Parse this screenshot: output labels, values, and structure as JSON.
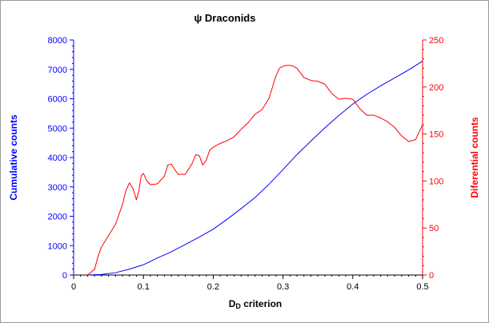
{
  "chart_data": {
    "type": "line",
    "title": "ψ Draconids",
    "xlabel_main": "D",
    "xlabel_sub": "D",
    "xlabel_rest": " criterion",
    "ylabel_left": "Cumulative counts",
    "ylabel_right": "Diferential counts",
    "xlim": [
      0,
      0.5
    ],
    "ylim_left": [
      0,
      8000
    ],
    "ylim_right": [
      0,
      250
    ],
    "x_ticks": [
      "0",
      "0.1",
      "0.2",
      "0.3",
      "0.4",
      "0.5"
    ],
    "y_left_ticks": [
      "0",
      "1000",
      "2000",
      "3000",
      "4000",
      "5000",
      "6000",
      "7000",
      "8000"
    ],
    "y_right_ticks": [
      "0",
      "50",
      "100",
      "150",
      "200",
      "250"
    ],
    "grid": false,
    "legend": "none",
    "colors": {
      "cumulative": "#0000ff",
      "differential": "#ff0000",
      "axes": "#000000"
    },
    "series": [
      {
        "axis": "left",
        "x": [
          0.02,
          0.04,
          0.06,
          0.08,
          0.1,
          0.12,
          0.14,
          0.16,
          0.18,
          0.2,
          0.22,
          0.24,
          0.26,
          0.28,
          0.3,
          0.32,
          0.34,
          0.36,
          0.38,
          0.4,
          0.42,
          0.44,
          0.46,
          0.48,
          0.5
        ],
        "values": [
          0,
          20,
          80,
          200,
          350,
          580,
          790,
          1040,
          1290,
          1560,
          1900,
          2260,
          2640,
          3090,
          3590,
          4100,
          4560,
          5010,
          5430,
          5820,
          6150,
          6440,
          6710,
          6980,
          7280
        ]
      },
      {
        "axis": "right",
        "x": [
          0.02,
          0.03,
          0.035,
          0.04,
          0.045,
          0.05,
          0.06,
          0.07,
          0.075,
          0.08,
          0.085,
          0.09,
          0.093,
          0.097,
          0.1,
          0.105,
          0.11,
          0.12,
          0.13,
          0.135,
          0.14,
          0.145,
          0.15,
          0.16,
          0.17,
          0.175,
          0.18,
          0.185,
          0.19,
          0.195,
          0.2,
          0.21,
          0.22,
          0.23,
          0.24,
          0.25,
          0.26,
          0.27,
          0.28,
          0.29,
          0.295,
          0.3,
          0.305,
          0.31,
          0.315,
          0.32,
          0.33,
          0.34,
          0.35,
          0.36,
          0.37,
          0.38,
          0.39,
          0.4,
          0.41,
          0.42,
          0.43,
          0.44,
          0.45,
          0.46,
          0.47,
          0.48,
          0.49,
          0.5
        ],
        "values": [
          0,
          6,
          20,
          30,
          36,
          42,
          54,
          75,
          90,
          98,
          92,
          80,
          88,
          106,
          108,
          100,
          96,
          97,
          105,
          117,
          118,
          112,
          107,
          107,
          119,
          128,
          127,
          117,
          122,
          133,
          136,
          140,
          143,
          147,
          155,
          162,
          171,
          176,
          188,
          212,
          220,
          222,
          223,
          223,
          222,
          220,
          210,
          207,
          206,
          203,
          193,
          187,
          188,
          187,
          177,
          170,
          170,
          167,
          163,
          157,
          148,
          142,
          144,
          160
        ]
      }
    ]
  }
}
